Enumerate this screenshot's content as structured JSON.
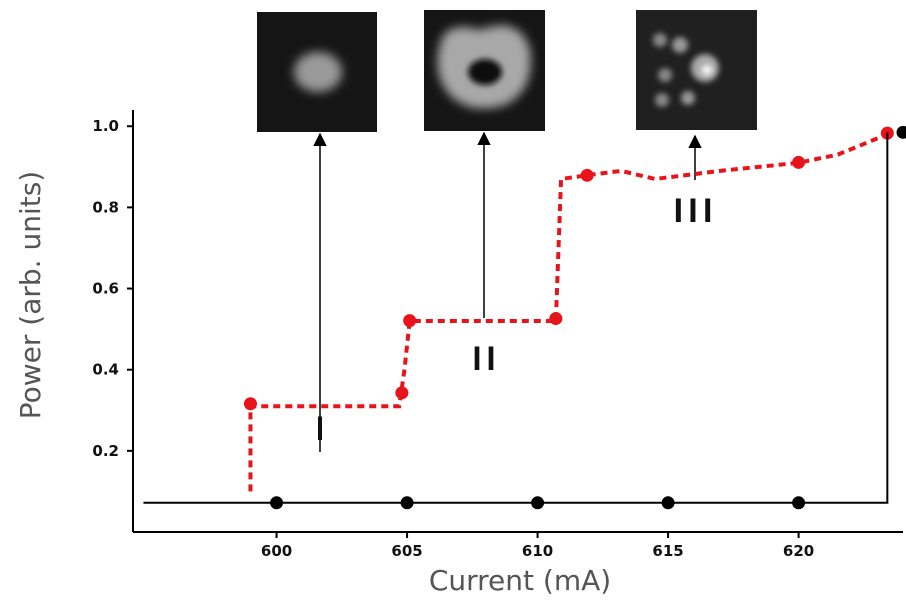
{
  "chart_data": {
    "type": "line",
    "xlabel": "Current (mA)",
    "ylabel": "Power (arb. units)",
    "xlim": [
      594.5,
      624
    ],
    "ylim": [
      0,
      1.04
    ],
    "xticks": [
      600,
      605,
      610,
      615,
      620
    ],
    "yticks": [
      0.2,
      0.4,
      0.6,
      0.8,
      {
        "value": 1,
        "label": "1.0"
      }
    ],
    "series": [
      {
        "color": "#e8141b",
        "style": "dashed",
        "markers": false,
        "x": [
          599,
          599,
          604.7,
          604.9,
          605.1,
          610.7,
          610.9,
          612,
          613.2,
          614.5,
          617,
          620,
          621.5,
          623.4
        ],
        "values": [
          0.1,
          0.31,
          0.31,
          0.4,
          0.52,
          0.52,
          0.87,
          0.88,
          0.89,
          0.87,
          0.89,
          0.91,
          0.93,
          0.98
        ]
      },
      {
        "color": "#e8141b",
        "style": "none",
        "markers": true,
        "x": [
          599,
          604.8,
          605.1,
          610.7,
          611.9,
          620,
          623.4
        ],
        "values": [
          0.316,
          0.343,
          0.521,
          0.526,
          0.879,
          0.911,
          0.983
        ]
      },
      {
        "color": "#000000",
        "style": "solid",
        "markers": false,
        "x": [
          594.9,
          623.4,
          623.4
        ],
        "values": [
          0.072,
          0.072,
          0.985
        ]
      },
      {
        "color": "#000000",
        "style": "none",
        "markers": true,
        "x": [
          600,
          605,
          610,
          615,
          620,
          624
        ],
        "values": [
          0.072,
          0.072,
          0.072,
          0.072,
          0.072,
          0.985
        ]
      }
    ],
    "annotations": [
      "I",
      "II",
      "III"
    ]
  }
}
